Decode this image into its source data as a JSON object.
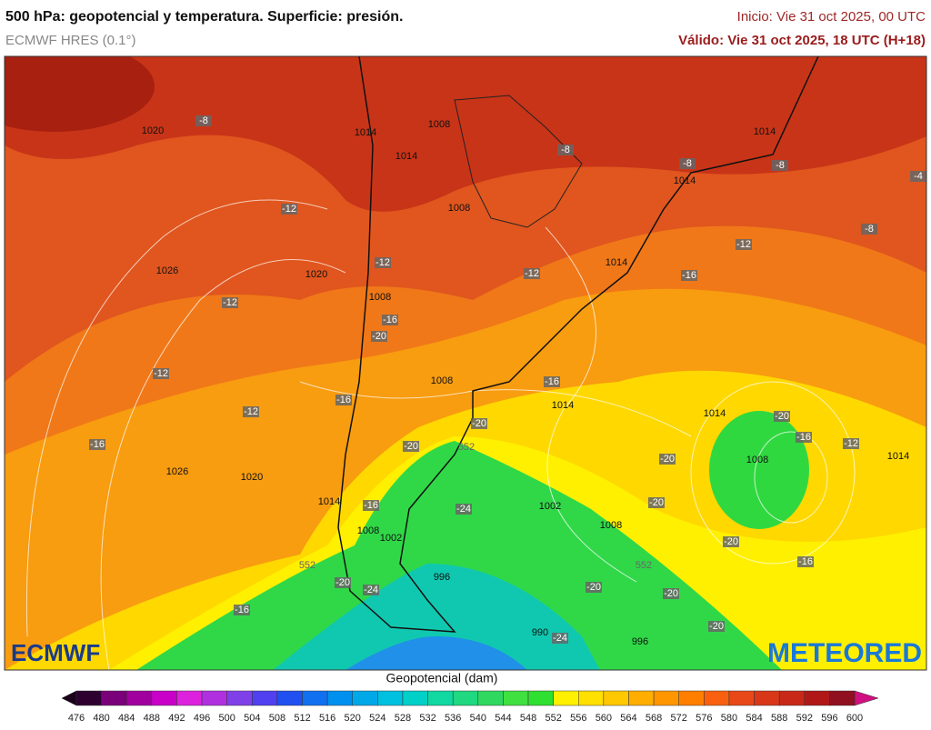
{
  "header": {
    "title": "500 hPa: geopotencial y temperatura. Superficie: presión.",
    "model": "ECMWF HRES (0.1°)",
    "init": "Inicio: Vie 31 oct 2025, 00 UTC",
    "valid": "Válido: Vie 31 oct 2025, 18 UTC (H+18)"
  },
  "map": {
    "labels": [
      "1020",
      "-8",
      "1014",
      "1008",
      "1014",
      "-12",
      "1008",
      "1026",
      "1020",
      "-12",
      "-12",
      "-12",
      "1014",
      "-12",
      "-16",
      "-8",
      "-8",
      "-8",
      "1014",
      "1014",
      "-8",
      "-4",
      "-12",
      "-16",
      "-12",
      "1008",
      "-16",
      "1014",
      "1014",
      "-20",
      "-16",
      "-12",
      "1014",
      "1008",
      "-16",
      "1026",
      "1020",
      "1014",
      "-16",
      "-24",
      "1002",
      "1008",
      "-20",
      "-20",
      "-16",
      "1008",
      "1002",
      "-20",
      "-24",
      "996",
      "-20",
      "-20",
      "-16",
      "990",
      "-24",
      "996",
      "-20",
      "552",
      "552",
      "552",
      "-20",
      "-20",
      "-20",
      "-16",
      "1008",
      "-20"
    ]
  },
  "logos": {
    "left": "ECMWF",
    "right": "METEORED"
  },
  "colorbar": {
    "title": "Geopotencial (dam)",
    "ticks": [
      476,
      480,
      484,
      488,
      492,
      496,
      500,
      504,
      508,
      512,
      516,
      520,
      524,
      528,
      532,
      536,
      540,
      544,
      548,
      552,
      556,
      560,
      564,
      568,
      572,
      576,
      580,
      584,
      588,
      592,
      596,
      600
    ],
    "colors": [
      "#2d0030",
      "#7a007a",
      "#a0009e",
      "#c800c8",
      "#dd22dd",
      "#b030e0",
      "#8040e8",
      "#5040f0",
      "#2050f0",
      "#1070f0",
      "#0090f0",
      "#00a8e8",
      "#00c0e0",
      "#00d0c8",
      "#10d8a0",
      "#20d880",
      "#30d860",
      "#40e040",
      "#30e030",
      "#fff000",
      "#ffe000",
      "#ffc800",
      "#ffae00",
      "#ff9600",
      "#ff7e00",
      "#f86010",
      "#e84818",
      "#d83818",
      "#c82818",
      "#b01818",
      "#901020"
    ],
    "under_color": "#1a001a",
    "over_color": "#d01080"
  }
}
